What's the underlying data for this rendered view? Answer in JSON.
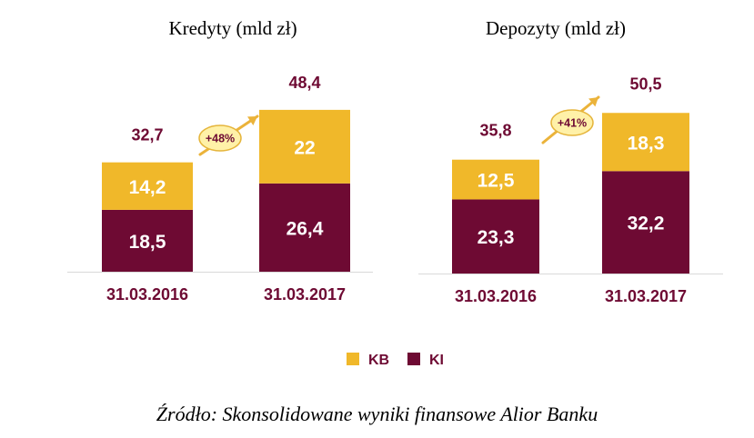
{
  "colors": {
    "kb": "#F0B82A",
    "ki": "#6E0A33",
    "axis": "#d9d9d9",
    "growth_fill": "#FFF1A8",
    "growth_stroke": "#E5B53C",
    "arrow": "#EBB33A"
  },
  "legend": [
    {
      "label": "KB",
      "color": "#F0B82A"
    },
    {
      "label": "KI",
      "color": "#6E0A33"
    }
  ],
  "caption": "Źródło: Skonsolidowane wyniki finansowe Alior Banku",
  "chart_data": [
    {
      "type": "bar",
      "stacked": true,
      "title": "Kredyty (mld zł)",
      "categories": [
        "31.03.2016",
        "31.03.2017"
      ],
      "series": [
        {
          "name": "KI",
          "values": [
            18.5,
            26.4
          ],
          "labels": [
            "18,5",
            "26,4"
          ]
        },
        {
          "name": "KB",
          "values": [
            14.2,
            22
          ],
          "labels": [
            "14,2",
            "22"
          ]
        }
      ],
      "totals": [
        32.7,
        48.4
      ],
      "total_labels": [
        "32,7",
        "48,4"
      ],
      "growth_label": "+48%",
      "ylim": [
        0,
        55
      ]
    },
    {
      "type": "bar",
      "stacked": true,
      "title": "Depozyty (mld zł)",
      "categories": [
        "31.03.2016",
        "31.03.2017"
      ],
      "series": [
        {
          "name": "KI",
          "values": [
            23.3,
            32.2
          ],
          "labels": [
            "23,3",
            "32,2"
          ]
        },
        {
          "name": "KB",
          "values": [
            12.5,
            18.3
          ],
          "labels": [
            "12,5",
            "18,3"
          ]
        }
      ],
      "totals": [
        35.8,
        50.5
      ],
      "total_labels": [
        "35,8",
        "50,5"
      ],
      "growth_label": "+41%",
      "ylim": [
        0,
        55
      ]
    }
  ]
}
